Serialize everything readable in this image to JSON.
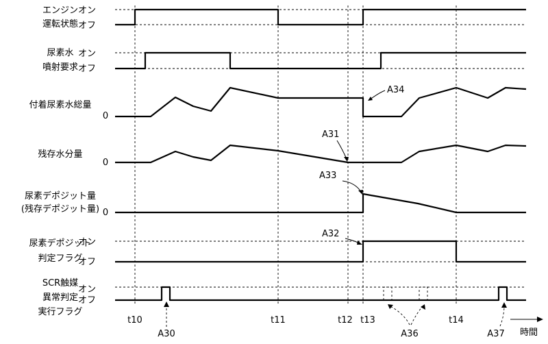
{
  "rows": [
    {
      "label": [
        "エンジン",
        "運転状態"
      ],
      "levels": [
        "オン",
        "オフ"
      ]
    },
    {
      "label": [
        "尿素水",
        "噴射要求"
      ],
      "levels": [
        "オン",
        "オフ"
      ]
    },
    {
      "label": [
        "付着尿素水総量"
      ],
      "levels": [
        "0"
      ]
    },
    {
      "label": [
        "残存水分量"
      ],
      "levels": [
        "0"
      ]
    },
    {
      "label": [
        "尿素デポジット量",
        "(残存デポジット量)"
      ],
      "levels": [
        "0"
      ]
    },
    {
      "label": [
        "尿素デポジット",
        "判定フラグ"
      ],
      "levels": [
        "オン",
        "オフ"
      ]
    },
    {
      "label": [
        "SCR触媒",
        "異常判定",
        "実行フラグ"
      ],
      "levels": [
        "オン",
        "オフ"
      ]
    }
  ],
  "time_labels": [
    "t10",
    "t11",
    "t12",
    "t13",
    "t14"
  ],
  "time_axis_label": "時間",
  "callouts": [
    "A30",
    "A31",
    "A32",
    "A33",
    "A34",
    "A36",
    "A37"
  ]
}
